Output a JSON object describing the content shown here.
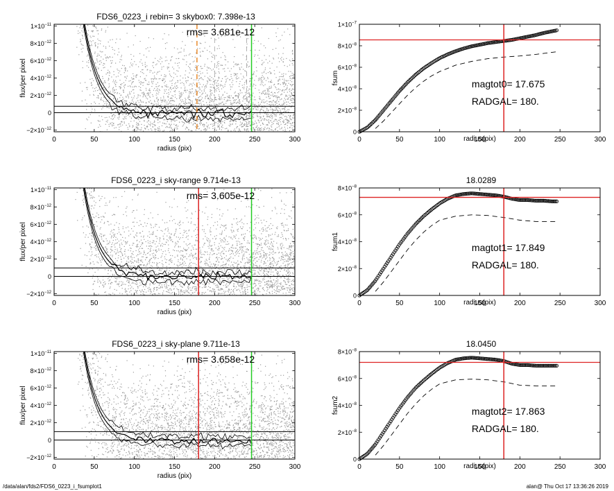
{
  "footer": {
    "path": "/data/alan/fds2/FDS6_0223_i_fsumplot1",
    "stamp": "alan@  Thu Oct 17 13:36:26 2019"
  },
  "colors": {
    "orange": "#e8892a",
    "green": "#22cc22",
    "red": "#dd2222",
    "scatter": "#9a9a9a",
    "ink": "#000000"
  },
  "chart_data": [
    {
      "type": "scatter",
      "panel": "left-top",
      "title": "FDS6_0223_i rebin= 3    skybox0:  7.398e-13",
      "annotation": "rms= 3.681e-12",
      "xlabel": "radius (pix)",
      "ylabel": "flux/per pixel",
      "xlim": [
        0,
        300
      ],
      "ylim": [
        -2.2e-12,
        1.02e-11
      ],
      "x_ticks": [
        "0",
        "50",
        "100",
        "150",
        "200",
        "250",
        "300"
      ],
      "y_ticks": [
        {
          "v": -2e-12,
          "m": "−2×10",
          "e": "−12"
        },
        {
          "v": 0,
          "m": "0",
          "e": ""
        },
        {
          "v": 2e-12,
          "m": "2×10",
          "e": "−12"
        },
        {
          "v": 4e-12,
          "m": "4×10",
          "e": "−12"
        },
        {
          "v": 6e-12,
          "m": "6×10",
          "e": "−12"
        },
        {
          "v": 8e-12,
          "m": "8×10",
          "e": "−12"
        },
        {
          "v": 1e-11,
          "m": "1×10",
          "e": "−11"
        }
      ],
      "hlines": [
        0,
        7.398e-13
      ],
      "vlines": [
        {
          "x": 178,
          "color": "orange",
          "dash": true
        },
        {
          "x": 200,
          "color": "gray",
          "dash": true
        },
        {
          "x": 240,
          "color": "gray",
          "dash": true
        },
        {
          "x": 246,
          "color": "green",
          "dash": false
        }
      ]
    },
    {
      "type": "line",
      "panel": "right-top",
      "title": "",
      "xlabel": "radius(pix)",
      "ylabel": "fsum",
      "xlim": [
        0,
        300
      ],
      "ylim": [
        0,
        1e-07
      ],
      "x_ticks": [
        "0",
        "50",
        "100",
        "150",
        "200",
        "250",
        "300"
      ],
      "y_ticks": [
        {
          "v": 0,
          "m": "0",
          "e": ""
        },
        {
          "v": 2e-08,
          "m": "2×10",
          "e": "−8"
        },
        {
          "v": 4e-08,
          "m": "4×10",
          "e": "−8"
        },
        {
          "v": 6e-08,
          "m": "6×10",
          "e": "−8"
        },
        {
          "v": 8e-08,
          "m": "8×10",
          "e": "−8"
        },
        {
          "v": 1e-07,
          "m": "1×10",
          "e": "−7"
        }
      ],
      "texts": [
        "magtot0=  17.675",
        "RADGAL=    180."
      ],
      "hline": 8.55e-08,
      "vline": 180,
      "curve": [
        [
          0,
          0
        ],
        [
          10,
          4e-09
        ],
        [
          20,
          1.1e-08
        ],
        [
          30,
          2e-08
        ],
        [
          40,
          2.9e-08
        ],
        [
          50,
          3.8e-08
        ],
        [
          60,
          4.6e-08
        ],
        [
          70,
          5.3e-08
        ],
        [
          80,
          5.9e-08
        ],
        [
          90,
          6.4e-08
        ],
        [
          100,
          6.85e-08
        ],
        [
          110,
          7.2e-08
        ],
        [
          120,
          7.5e-08
        ],
        [
          130,
          7.75e-08
        ],
        [
          140,
          7.95e-08
        ],
        [
          150,
          8.1e-08
        ],
        [
          160,
          8.25e-08
        ],
        [
          170,
          8.35e-08
        ],
        [
          180,
          8.45e-08
        ],
        [
          190,
          8.55e-08
        ],
        [
          200,
          8.7e-08
        ],
        [
          210,
          8.85e-08
        ],
        [
          220,
          9e-08
        ],
        [
          230,
          9.2e-08
        ],
        [
          240,
          9.35e-08
        ],
        [
          247,
          9.45e-08
        ]
      ],
      "dashed": [
        [
          20,
          3e-09
        ],
        [
          30,
          1e-08
        ],
        [
          40,
          1.8e-08
        ],
        [
          50,
          2.6e-08
        ],
        [
          60,
          3.4e-08
        ],
        [
          70,
          4.1e-08
        ],
        [
          80,
          4.7e-08
        ],
        [
          90,
          5.2e-08
        ],
        [
          100,
          5.6e-08
        ],
        [
          120,
          6.2e-08
        ],
        [
          140,
          6.55e-08
        ],
        [
          160,
          6.8e-08
        ],
        [
          180,
          6.95e-08
        ],
        [
          200,
          7.05e-08
        ],
        [
          220,
          7.2e-08
        ],
        [
          247,
          7.45e-08
        ]
      ]
    },
    {
      "type": "scatter",
      "panel": "left-middle",
      "title": "FDS6_0223_i sky-range  9.714e-13",
      "annotation": "rms= 3.605e-12",
      "xlabel": "radius (pix)",
      "ylabel": "flux/per pixel",
      "xlim": [
        0,
        300
      ],
      "ylim": [
        -2.2e-12,
        1.02e-11
      ],
      "x_ticks": [
        "0",
        "50",
        "100",
        "150",
        "200",
        "250",
        "300"
      ],
      "y_ticks": [
        {
          "v": -2e-12,
          "m": "−2×10",
          "e": "−12"
        },
        {
          "v": 0,
          "m": "0",
          "e": ""
        },
        {
          "v": 2e-12,
          "m": "2×10",
          "e": "−12"
        },
        {
          "v": 4e-12,
          "m": "4×10",
          "e": "−12"
        },
        {
          "v": 6e-12,
          "m": "6×10",
          "e": "−12"
        },
        {
          "v": 8e-12,
          "m": "8×10",
          "e": "−12"
        },
        {
          "v": 1e-11,
          "m": "1×10",
          "e": "−11"
        }
      ],
      "hlines": [
        0,
        9.714e-13
      ],
      "vlines": [
        {
          "x": 180,
          "color": "red",
          "dash": false
        },
        {
          "x": 246,
          "color": "green",
          "dash": false
        }
      ]
    },
    {
      "type": "line",
      "panel": "right-middle",
      "title": "18.0289",
      "xlabel": "radius(pix)",
      "ylabel": "fsum1",
      "xlim": [
        0,
        300
      ],
      "ylim": [
        0,
        8e-08
      ],
      "x_ticks": [
        "0",
        "50",
        "100",
        "150",
        "200",
        "250",
        "300"
      ],
      "y_ticks": [
        {
          "v": 0,
          "m": "0",
          "e": ""
        },
        {
          "v": 2e-08,
          "m": "2×10",
          "e": "−8"
        },
        {
          "v": 4e-08,
          "m": "4×10",
          "e": "−8"
        },
        {
          "v": 6e-08,
          "m": "6×10",
          "e": "−8"
        },
        {
          "v": 8e-08,
          "m": "8×10",
          "e": "−8"
        }
      ],
      "texts": [
        "magtot1=  17.849",
        "RADGAL=    180."
      ],
      "hline": 7.3e-08,
      "vline": 180,
      "curve": [
        [
          0,
          0
        ],
        [
          10,
          4e-09
        ],
        [
          20,
          1.1e-08
        ],
        [
          30,
          2e-08
        ],
        [
          40,
          2.9e-08
        ],
        [
          50,
          3.8e-08
        ],
        [
          60,
          4.6e-08
        ],
        [
          70,
          5.3e-08
        ],
        [
          80,
          5.9e-08
        ],
        [
          90,
          6.4e-08
        ],
        [
          100,
          6.85e-08
        ],
        [
          110,
          7.2e-08
        ],
        [
          120,
          7.45e-08
        ],
        [
          130,
          7.55e-08
        ],
        [
          140,
          7.6e-08
        ],
        [
          150,
          7.55e-08
        ],
        [
          160,
          7.5e-08
        ],
        [
          170,
          7.45e-08
        ],
        [
          180,
          7.35e-08
        ],
        [
          190,
          7.2e-08
        ],
        [
          200,
          7.1e-08
        ],
        [
          210,
          7.1e-08
        ],
        [
          220,
          7.05e-08
        ],
        [
          230,
          7.05e-08
        ],
        [
          240,
          7e-08
        ],
        [
          247,
          7e-08
        ]
      ],
      "dashed": [
        [
          20,
          3e-09
        ],
        [
          30,
          1e-08
        ],
        [
          40,
          1.8e-08
        ],
        [
          50,
          2.6e-08
        ],
        [
          60,
          3.4e-08
        ],
        [
          70,
          4.1e-08
        ],
        [
          80,
          4.7e-08
        ],
        [
          90,
          5.2e-08
        ],
        [
          100,
          5.6e-08
        ],
        [
          120,
          5.9e-08
        ],
        [
          140,
          6e-08
        ],
        [
          160,
          5.95e-08
        ],
        [
          180,
          5.8e-08
        ],
        [
          200,
          5.6e-08
        ],
        [
          220,
          5.5e-08
        ],
        [
          247,
          5.5e-08
        ]
      ]
    },
    {
      "type": "scatter",
      "panel": "left-bottom",
      "title": "FDS6_0223_i sky-plane  9.711e-13",
      "annotation": "rms= 3.658e-12",
      "xlabel": "radius (pix)",
      "ylabel": "flux/per pixel",
      "xlim": [
        0,
        300
      ],
      "ylim": [
        -2.2e-12,
        1.02e-11
      ],
      "x_ticks": [
        "0",
        "50",
        "100",
        "150",
        "200",
        "250",
        "300"
      ],
      "y_ticks": [
        {
          "v": -2e-12,
          "m": "−2×10",
          "e": "−12"
        },
        {
          "v": 0,
          "m": "0",
          "e": ""
        },
        {
          "v": 2e-12,
          "m": "2×10",
          "e": "−12"
        },
        {
          "v": 4e-12,
          "m": "4×10",
          "e": "−12"
        },
        {
          "v": 6e-12,
          "m": "6×10",
          "e": "−12"
        },
        {
          "v": 8e-12,
          "m": "8×10",
          "e": "−12"
        },
        {
          "v": 1e-11,
          "m": "1×10",
          "e": "−11"
        }
      ],
      "hlines": [
        0,
        9.711e-13
      ],
      "vlines": [
        {
          "x": 180,
          "color": "red",
          "dash": false
        },
        {
          "x": 246,
          "color": "green",
          "dash": false
        }
      ]
    },
    {
      "type": "line",
      "panel": "right-bottom",
      "title": "18.0450",
      "xlabel": "radius(pix)",
      "ylabel": "fsum2",
      "xlim": [
        0,
        300
      ],
      "ylim": [
        0,
        8e-08
      ],
      "x_ticks": [
        "0",
        "50",
        "100",
        "150",
        "200",
        "250",
        "300"
      ],
      "y_ticks": [
        {
          "v": 0,
          "m": "0",
          "e": ""
        },
        {
          "v": 2e-08,
          "m": "2×10",
          "e": "−8"
        },
        {
          "v": 4e-08,
          "m": "4×10",
          "e": "−8"
        },
        {
          "v": 6e-08,
          "m": "6×10",
          "e": "−8"
        },
        {
          "v": 8e-08,
          "m": "8×10",
          "e": "−8"
        }
      ],
      "texts": [
        "magtot2=  17.863",
        "RADGAL=    180."
      ],
      "hline": 7.2e-08,
      "vline": 180,
      "curve": [
        [
          0,
          0
        ],
        [
          10,
          4e-09
        ],
        [
          20,
          1.1e-08
        ],
        [
          30,
          2e-08
        ],
        [
          40,
          2.9e-08
        ],
        [
          50,
          3.8e-08
        ],
        [
          60,
          4.6e-08
        ],
        [
          70,
          5.3e-08
        ],
        [
          80,
          5.85e-08
        ],
        [
          90,
          6.35e-08
        ],
        [
          100,
          6.8e-08
        ],
        [
          110,
          7.15e-08
        ],
        [
          120,
          7.4e-08
        ],
        [
          130,
          7.5e-08
        ],
        [
          140,
          7.55e-08
        ],
        [
          150,
          7.5e-08
        ],
        [
          160,
          7.45e-08
        ],
        [
          170,
          7.4e-08
        ],
        [
          180,
          7.3e-08
        ],
        [
          190,
          7.1e-08
        ],
        [
          200,
          7e-08
        ],
        [
          210,
          7e-08
        ],
        [
          220,
          6.95e-08
        ],
        [
          230,
          6.95e-08
        ],
        [
          240,
          6.95e-08
        ],
        [
          247,
          6.95e-08
        ]
      ],
      "dashed": [
        [
          20,
          3e-09
        ],
        [
          30,
          1e-08
        ],
        [
          40,
          1.8e-08
        ],
        [
          50,
          2.6e-08
        ],
        [
          60,
          3.4e-08
        ],
        [
          70,
          4.1e-08
        ],
        [
          80,
          4.7e-08
        ],
        [
          90,
          5.2e-08
        ],
        [
          100,
          5.6e-08
        ],
        [
          120,
          5.9e-08
        ],
        [
          140,
          5.95e-08
        ],
        [
          160,
          5.9e-08
        ],
        [
          180,
          5.75e-08
        ],
        [
          200,
          5.5e-08
        ],
        [
          220,
          5.45e-08
        ],
        [
          247,
          5.45e-08
        ]
      ]
    }
  ]
}
